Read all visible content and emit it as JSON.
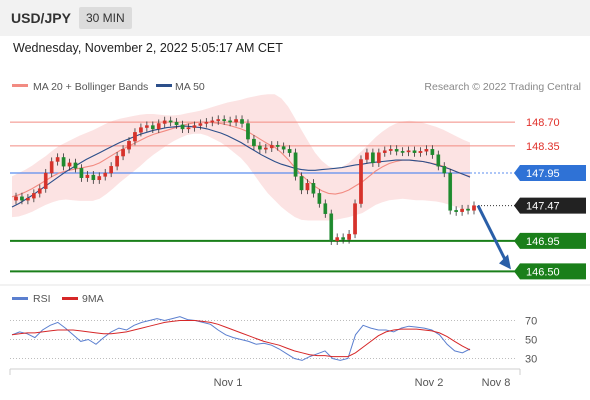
{
  "header": {
    "symbol": "USD/JPY",
    "timeframe": "30 MIN"
  },
  "timestamp": "Wednesday, November 2, 2022 5:05:17 AM CET",
  "legend": {
    "items": [
      {
        "label": "MA 20 + Bollinger Bands",
        "color": "#f28b82"
      },
      {
        "label": "MA 50",
        "color": "#2c4f8a"
      }
    ],
    "credit": "Research © 2022 Trading Central"
  },
  "chart_data": [
    {
      "type": "candlestick",
      "price_range": [
        146.3,
        149.1
      ],
      "x_ticks": [
        "Nov 1",
        "Nov 2",
        "Nov 8"
      ],
      "price_levels": [
        {
          "value": 148.7,
          "label": "148.70",
          "kind": "resistance"
        },
        {
          "value": 148.35,
          "label": "148.35",
          "kind": "resistance"
        },
        {
          "value": 147.95,
          "label": "147.95",
          "kind": "pivot"
        },
        {
          "value": 147.47,
          "label": "147.47",
          "kind": "last"
        },
        {
          "value": 146.95,
          "label": "146.95",
          "kind": "support"
        },
        {
          "value": 146.5,
          "label": "146.50",
          "kind": "support"
        }
      ],
      "close": [
        147.6,
        147.55,
        147.58,
        147.65,
        147.72,
        147.95,
        148.12,
        148.18,
        148.05,
        148.1,
        148.02,
        147.88,
        147.92,
        147.85,
        147.9,
        147.95,
        148.05,
        148.2,
        148.3,
        148.42,
        148.55,
        148.62,
        148.65,
        148.6,
        148.68,
        148.72,
        148.7,
        148.66,
        148.6,
        148.62,
        148.65,
        148.68,
        148.7,
        148.72,
        148.74,
        148.72,
        148.7,
        148.74,
        148.68,
        148.45,
        148.35,
        148.3,
        148.32,
        148.36,
        148.34,
        148.3,
        148.25,
        147.9,
        147.7,
        147.8,
        147.65,
        147.5,
        147.35,
        146.95,
        147.0,
        146.97,
        147.05,
        147.5,
        148.15,
        148.25,
        148.1,
        148.25,
        148.28,
        148.3,
        148.27,
        148.26,
        148.28,
        148.25,
        148.27,
        148.3,
        148.22,
        148.05,
        147.95,
        147.4,
        147.38,
        147.42,
        147.4,
        147.47
      ],
      "ma20": [
        147.6,
        147.63,
        147.67,
        147.72,
        147.78,
        147.84,
        147.9,
        147.95,
        147.98,
        148.0,
        148.02,
        148.04,
        148.06,
        148.1,
        148.16,
        148.22,
        148.28,
        148.33,
        148.38,
        148.43,
        148.48,
        148.52,
        148.55,
        148.58,
        148.61,
        148.64,
        148.67,
        148.69,
        148.7,
        148.7,
        148.69,
        148.68,
        148.66,
        148.63,
        148.6,
        148.56,
        148.5,
        148.44,
        148.38,
        148.33,
        148.25,
        148.15,
        148.03,
        147.92,
        147.83,
        147.75,
        147.69,
        147.65,
        147.64,
        147.66,
        147.7,
        147.76,
        147.82,
        147.9,
        147.98,
        148.04,
        148.09,
        148.12,
        148.14,
        148.14,
        148.13,
        148.12,
        148.1,
        148.08,
        148.05,
        148.01,
        147.97,
        147.93,
        147.9
      ],
      "ma20_x_start": 0,
      "bollinger_half_width": [
        0.3,
        0.32,
        0.33,
        0.34,
        0.35,
        0.36,
        0.38,
        0.4,
        0.42,
        0.45,
        0.48,
        0.5,
        0.52,
        0.53,
        0.52,
        0.5,
        0.47,
        0.44,
        0.41,
        0.38,
        0.34,
        0.3,
        0.26,
        0.22,
        0.19,
        0.17,
        0.16,
        0.16,
        0.17,
        0.2,
        0.24,
        0.28,
        0.33,
        0.38,
        0.43,
        0.5,
        0.58,
        0.66,
        0.73,
        0.78,
        0.8,
        0.78,
        0.73,
        0.66,
        0.58,
        0.5,
        0.44,
        0.4,
        0.38,
        0.38,
        0.4,
        0.43,
        0.46,
        0.48,
        0.5,
        0.52,
        0.54,
        0.56,
        0.57,
        0.58,
        0.58,
        0.57,
        0.56,
        0.55,
        0.54,
        0.53,
        0.52,
        0.51,
        0.5
      ],
      "ma50": [
        147.45,
        147.5,
        147.56,
        147.62,
        147.69,
        147.76,
        147.83,
        147.9,
        147.97,
        148.03,
        148.09,
        148.15,
        148.2,
        148.25,
        148.3,
        148.35,
        148.4,
        148.44,
        148.48,
        148.52,
        148.55,
        148.58,
        148.6,
        148.62,
        148.63,
        148.64,
        148.64,
        148.63,
        148.62,
        148.6,
        148.57,
        148.54,
        148.5,
        148.45,
        148.4,
        148.34,
        148.28,
        148.22,
        148.17,
        148.12,
        148.08,
        148.05,
        148.02,
        148.0,
        147.99,
        147.99,
        148.0,
        148.01,
        148.02,
        148.03,
        148.05,
        148.07,
        148.08,
        148.1,
        148.11,
        148.12,
        148.13,
        148.14,
        148.14,
        148.14,
        148.13,
        148.12,
        148.1,
        148.07,
        148.04,
        148.01,
        147.97,
        147.93,
        147.89
      ]
    },
    {
      "type": "line",
      "legend": [
        {
          "label": "RSI",
          "color": "#5b7fcf"
        },
        {
          "label": "9MA",
          "color": "#d62728"
        }
      ],
      "y_ticks": [
        70,
        50,
        30
      ],
      "ylim": [
        20,
        80
      ],
      "rsi": [
        55,
        58,
        56,
        52,
        60,
        65,
        68,
        62,
        55,
        48,
        50,
        45,
        52,
        58,
        62,
        60,
        65,
        68,
        70,
        72,
        70,
        72,
        74,
        71,
        70,
        68,
        66,
        60,
        55,
        52,
        50,
        48,
        45,
        46,
        44,
        40,
        35,
        30,
        28,
        32,
        35,
        38,
        30,
        28,
        30,
        55,
        65,
        62,
        60,
        60,
        58,
        62,
        64,
        63,
        62,
        60,
        55,
        45,
        38,
        36,
        40
      ],
      "ma9": [
        55,
        56,
        57,
        57,
        58,
        59,
        60,
        60,
        60,
        59,
        58,
        57,
        56,
        56,
        57,
        58,
        60,
        62,
        64,
        66,
        68,
        69,
        70,
        70,
        70,
        69,
        68,
        66,
        63,
        60,
        57,
        54,
        51,
        48,
        46,
        44,
        41,
        38,
        36,
        34,
        33,
        33,
        32,
        32,
        32,
        36,
        42,
        48,
        54,
        58,
        60,
        61,
        61,
        61,
        60,
        59,
        57,
        53,
        48,
        43,
        39
      ]
    }
  ]
}
